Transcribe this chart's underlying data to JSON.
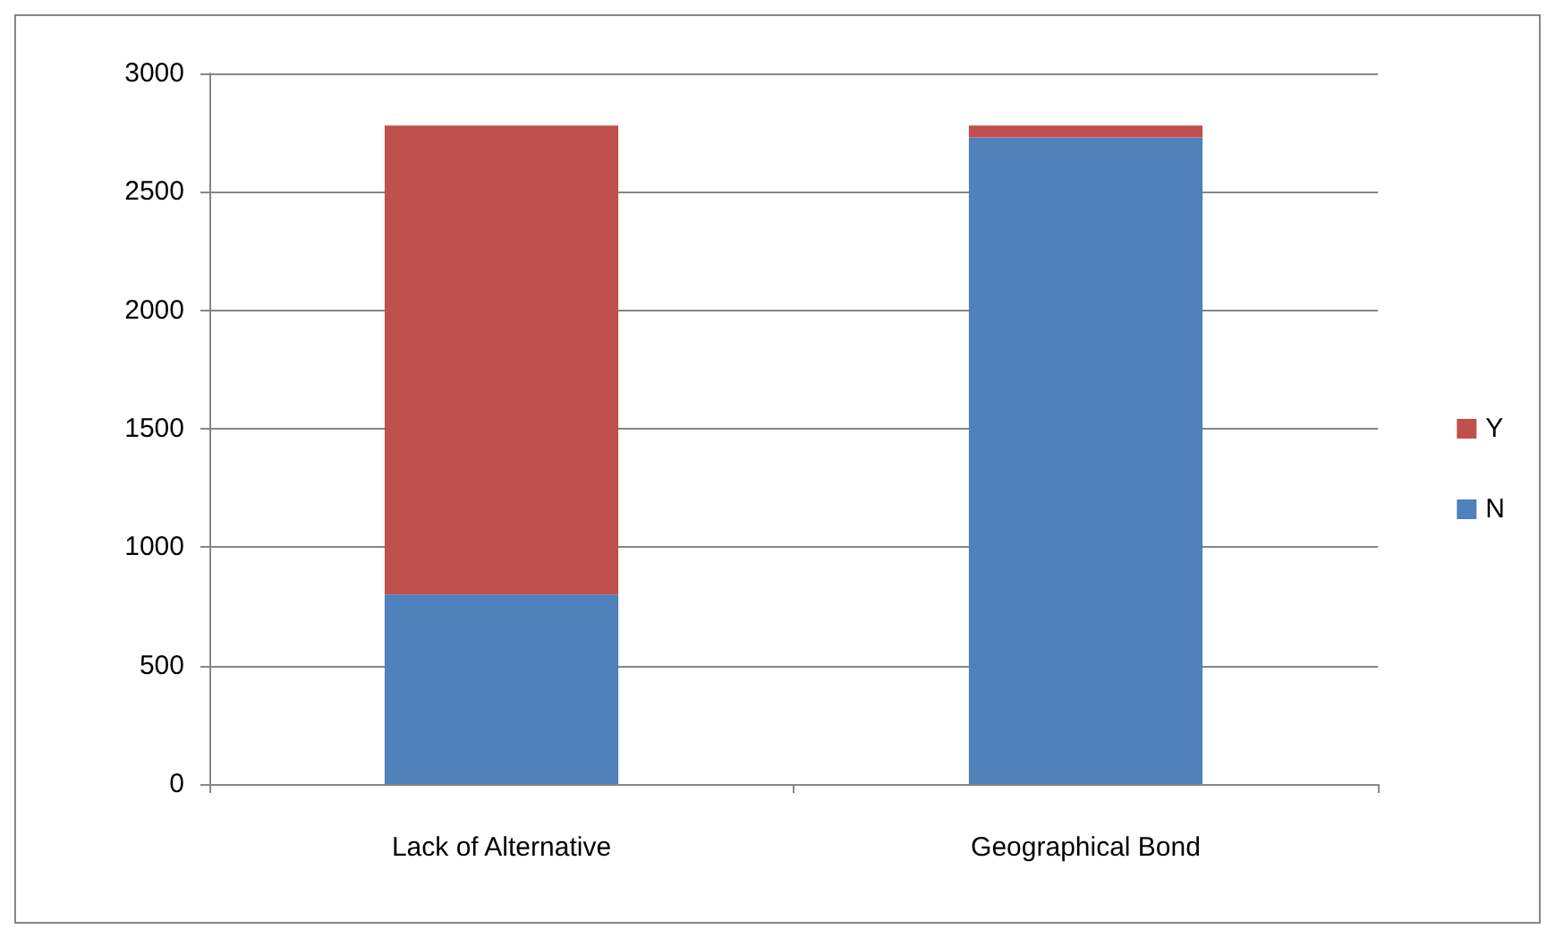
{
  "chart_data": {
    "type": "bar",
    "stacked": true,
    "categories": [
      "Lack of Alternative",
      "Geographical Bond"
    ],
    "series": [
      {
        "name": "N",
        "color": "#4f81bd",
        "values": [
          800,
          2730
        ]
      },
      {
        "name": "Y",
        "color": "#c0504d",
        "values": [
          1980,
          50
        ]
      }
    ],
    "ylim": [
      0,
      3000
    ],
    "yticks": [
      0,
      500,
      1000,
      1500,
      2000,
      2500,
      3000
    ],
    "grid": "y",
    "legend": "right"
  }
}
